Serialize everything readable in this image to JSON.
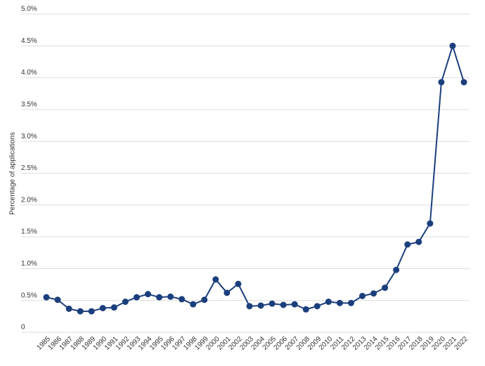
{
  "chart_data": {
    "type": "line",
    "y_label": "Percentage of applications",
    "categories": [
      "1985",
      "1986",
      "1987",
      "1988",
      "1989",
      "1990",
      "1991",
      "1992",
      "1993",
      "1994",
      "1995",
      "1996",
      "1997",
      "1998",
      "1999",
      "2000",
      "2001",
      "2002",
      "2003",
      "2004",
      "2005",
      "2006",
      "2007",
      "2008",
      "2009",
      "2010",
      "2011",
      "2012",
      "2013",
      "2014",
      "2015",
      "2016",
      "2017",
      "2018",
      "2019",
      "2020",
      "2021",
      "2022"
    ],
    "values": [
      0.55,
      0.51,
      0.37,
      0.33,
      0.33,
      0.38,
      0.39,
      0.48,
      0.55,
      0.6,
      0.55,
      0.56,
      0.52,
      0.44,
      0.51,
      0.83,
      0.62,
      0.76,
      0.41,
      0.42,
      0.45,
      0.43,
      0.44,
      0.36,
      0.41,
      0.48,
      0.46,
      0.46,
      0.57,
      0.61,
      0.7,
      0.98,
      1.38,
      1.42,
      1.71,
      3.93,
      4.5,
      3.93
    ],
    "color": "#1b3f7c",
    "ylim": [
      0,
      5
    ],
    "yticks": [
      0,
      {
        "value": 0.5,
        "label": "0.5%"
      },
      {
        "value": 1,
        "label": "1.0%"
      },
      {
        "value": 1.5,
        "label": "1.5%"
      },
      {
        "value": 2,
        "label": "2.0%"
      },
      {
        "value": 2.5,
        "label": "2.5%"
      },
      {
        "value": 3,
        "label": "3.0%"
      },
      {
        "value": 3.5,
        "label": "3.5%"
      },
      {
        "value": 4,
        "label": "4.0%"
      },
      {
        "value": 4.5,
        "label": "4.5%"
      },
      {
        "value": 5,
        "label": "5.0%"
      }
    ],
    "grid": true
  }
}
